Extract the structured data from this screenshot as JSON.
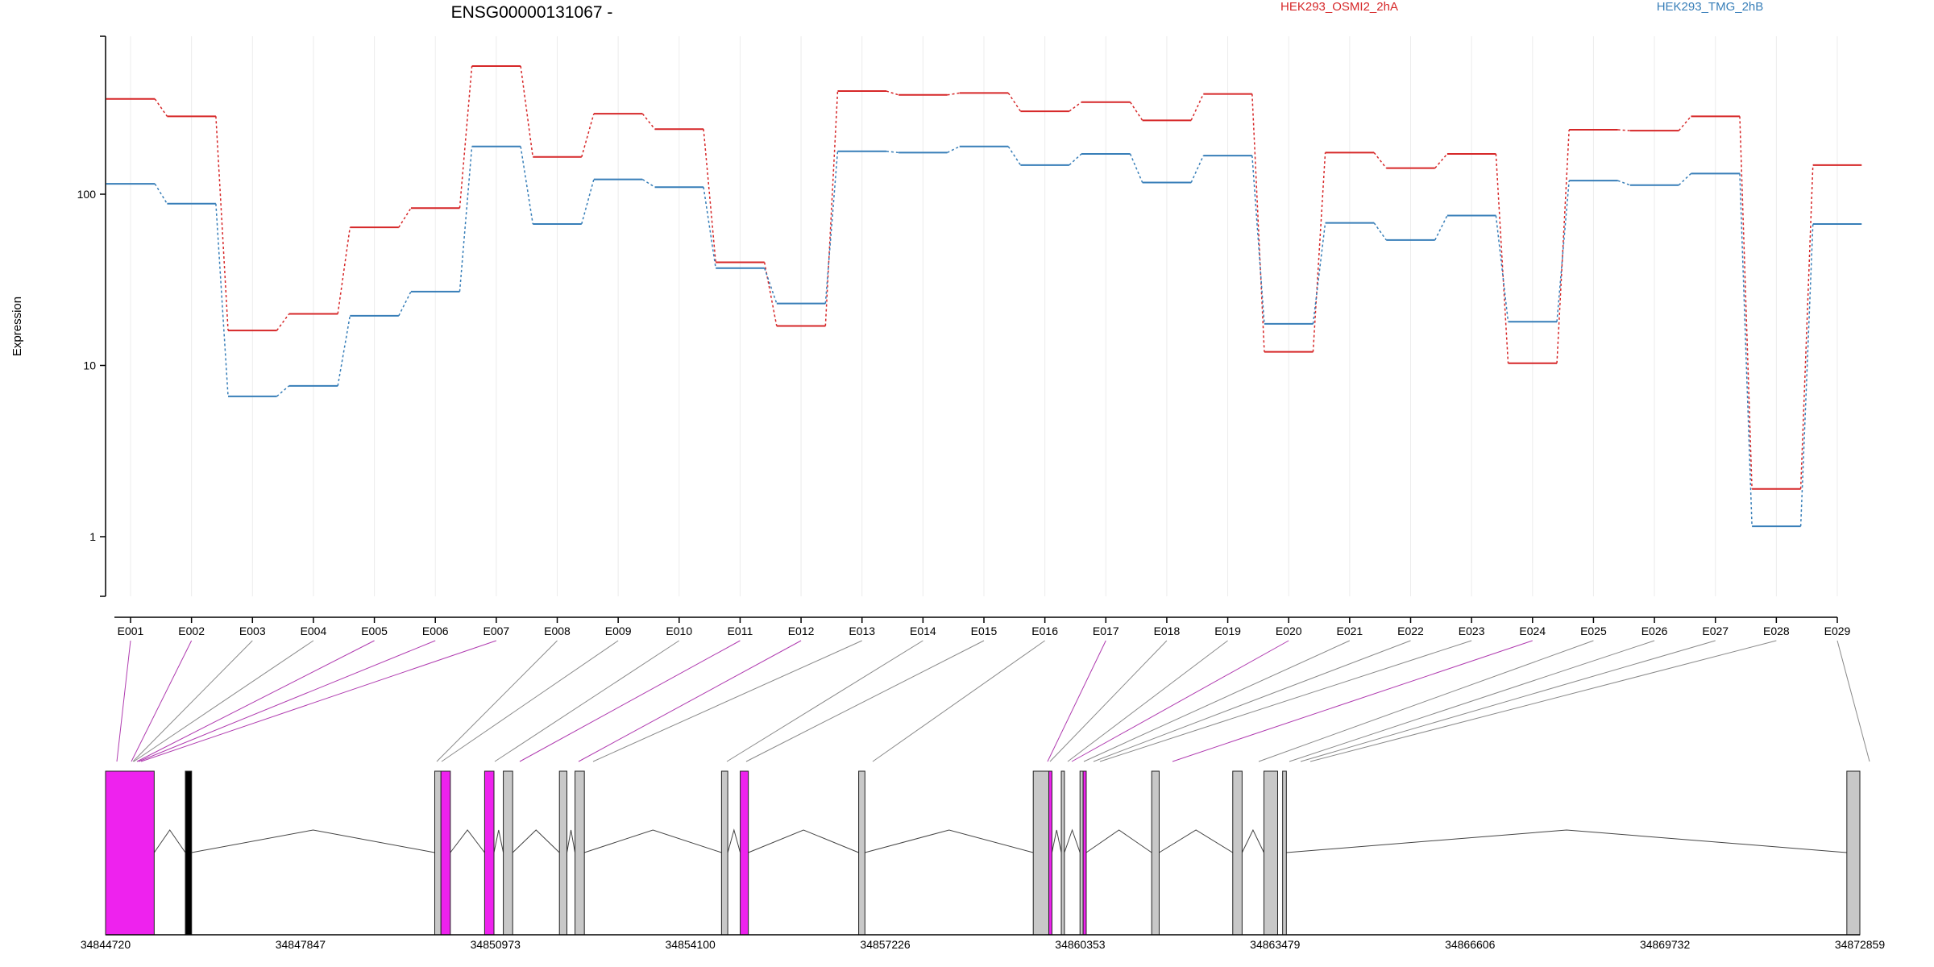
{
  "chart_data": {
    "type": "line",
    "title": "ENSG00000131067 -",
    "xlabel": "",
    "ylabel": "Expression",
    "y_scale": "log",
    "y_ticks": [
      "1",
      "10",
      "100"
    ],
    "ylim": [
      0.4,
      800
    ],
    "grid": "vertical at exon labels",
    "legend_placement": "top",
    "categories": [
      "E001",
      "E002",
      "E003",
      "E004",
      "E005",
      "E006",
      "E007",
      "E008",
      "E009",
      "E010",
      "E011",
      "E012",
      "E013",
      "E014",
      "E015",
      "E016",
      "E017",
      "E018",
      "E019",
      "E020",
      "E021",
      "E022",
      "E023",
      "E024",
      "E025",
      "E026",
      "E027",
      "E028",
      "E029"
    ],
    "series": [
      {
        "name": "HEK293_OSMI2_2hA",
        "color": "#d62728",
        "values": [
          360,
          285,
          16,
          20,
          64,
          83,
          560,
          165,
          295,
          240,
          40,
          17,
          400,
          380,
          390,
          305,
          345,
          270,
          385,
          12,
          175,
          142,
          172,
          10.3,
          238,
          235,
          285,
          1.9,
          148
        ]
      },
      {
        "name": "HEK293_TMG_2hB",
        "color": "#377eb8",
        "values": [
          115,
          88,
          6.6,
          7.6,
          19.5,
          27,
          190,
          67,
          122,
          110,
          37,
          23,
          178,
          175,
          190,
          148,
          172,
          117,
          168,
          17.5,
          68,
          54,
          75,
          18,
          120,
          113,
          132,
          1.15,
          67
        ]
      }
    ],
    "genomic_axis": {
      "tick_labels": [
        "34844720",
        "34847847",
        "34850973",
        "34854100",
        "34857226",
        "34860353",
        "34863479",
        "34866606",
        "34869732",
        "34872859"
      ],
      "range": [
        34844720,
        34872859
      ]
    },
    "exon_features": [
      {
        "start": 34844720,
        "end": 34845500,
        "color": "#ee22ee"
      },
      {
        "start": 34846000,
        "end": 34846100,
        "color": "#000000"
      },
      {
        "start": 34850000,
        "end": 34850100,
        "color": "#c8c8c8"
      },
      {
        "start": 34850100,
        "end": 34850250,
        "color": "#ee22ee"
      },
      {
        "start": 34850800,
        "end": 34850950,
        "color": "#ee22ee"
      },
      {
        "start": 34851100,
        "end": 34851250,
        "color": "#c8c8c8"
      },
      {
        "start": 34852000,
        "end": 34852120,
        "color": "#c8c8c8"
      },
      {
        "start": 34852250,
        "end": 34852400,
        "color": "#c8c8c8"
      },
      {
        "start": 34854600,
        "end": 34854700,
        "color": "#c8c8c8"
      },
      {
        "start": 34854900,
        "end": 34855030,
        "color": "#ee22ee"
      },
      {
        "start": 34856800,
        "end": 34856900,
        "color": "#c8c8c8"
      },
      {
        "start": 34859600,
        "end": 34859850,
        "color": "#c8c8c8"
      },
      {
        "start": 34859850,
        "end": 34859900,
        "color": "#ee22ee"
      },
      {
        "start": 34860050,
        "end": 34860100,
        "color": "#c8c8c8"
      },
      {
        "start": 34860350,
        "end": 34860400,
        "color": "#c8c8c8"
      },
      {
        "start": 34860400,
        "end": 34860450,
        "color": "#ee22ee"
      },
      {
        "start": 34861500,
        "end": 34861620,
        "color": "#c8c8c8"
      },
      {
        "start": 34862800,
        "end": 34862950,
        "color": "#c8c8c8"
      },
      {
        "start": 34863300,
        "end": 34863520,
        "color": "#c8c8c8"
      },
      {
        "start": 34863600,
        "end": 34863660,
        "color": "#c8c8c8"
      },
      {
        "start": 34872650,
        "end": 34872859,
        "color": "#c8c8c8"
      }
    ]
  }
}
